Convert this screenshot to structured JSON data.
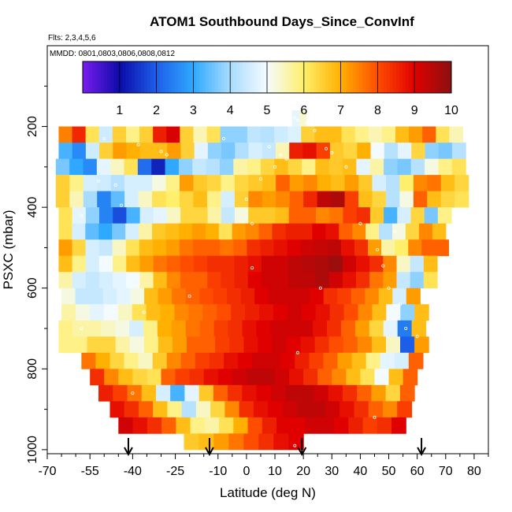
{
  "chart_data": {
    "type": "heatmap",
    "title": "ATOM1 Southbound Days_Since_ConvInf",
    "subtitle_flights": "Flts: 2,3,4,5,6",
    "subtitle_dates": "MMDD: 0801,0803,0806,0808,0812",
    "xlabel": "Latitude (deg N)",
    "ylabel": "PSXC (mbar)",
    "xlim": [
      -70,
      85
    ],
    "ylim": [
      1010,
      0
    ],
    "x_ticks": [
      -70,
      -55,
      -40,
      -25,
      -10,
      0,
      10,
      20,
      30,
      40,
      50,
      60,
      70,
      80
    ],
    "x_tick_labels": [
      "-70",
      "-55",
      "-40",
      "-25",
      "-10",
      "0",
      "10",
      "20",
      "30",
      "40",
      "50",
      "60",
      "70",
      "80"
    ],
    "y_ticks": [
      200,
      400,
      600,
      800,
      1000
    ],
    "y_tick_labels": [
      "200",
      "400",
      "600",
      "800",
      "1000"
    ],
    "colorbar": {
      "min": 0,
      "max": 10,
      "ticks": [
        1,
        2,
        3,
        4,
        5,
        6,
        7,
        8,
        9,
        10
      ],
      "tick_labels": [
        "1",
        "2",
        "3",
        "4",
        "5",
        "6",
        "7",
        "8",
        "9",
        "10"
      ]
    },
    "colors": {
      "c0": "#7a1cf0",
      "c1": "#0b0ba8",
      "c2": "#1d5ee8",
      "c3": "#2fa8ff",
      "c4": "#a8dcff",
      "c5": "#f4fbff",
      "c6": "#ffef6a",
      "c7": "#ffb000",
      "c8": "#ff4d00",
      "c9": "#e00000",
      "c10": "#8b1010"
    },
    "arrow_latitudes": [
      -41.5,
      -13,
      19.5,
      61.5
    ],
    "rows": [
      {
        "p": 180,
        "x0": 16,
        "x1": 21,
        "v": [
          4.8,
          5.3
        ]
      },
      {
        "p": 220,
        "x0": -66,
        "x1": 76,
        "v": [
          7.5,
          8.5,
          6.2,
          4.5,
          6.5,
          5.8,
          6.5,
          8.6,
          9.1,
          6.5,
          5.5,
          6.2,
          3.8,
          3.8,
          4.3,
          4.2,
          4.5,
          4.7,
          6.5,
          6.8,
          6.8,
          6.2,
          5.8,
          5.5,
          5.8,
          6.8,
          7.2,
          7.8,
          6.2,
          5.5
        ]
      },
      {
        "p": 260,
        "x0": -66,
        "x1": 77,
        "v": [
          3.2,
          2.6,
          4.5,
          6.5,
          7.2,
          7.0,
          6.8,
          6.8,
          7.2,
          6.5,
          4.8,
          3.8,
          3.6,
          4.1,
          4.6,
          4.4,
          5.5,
          8.6,
          8.8,
          8.2,
          6.6,
          6.4,
          7.0,
          5.0,
          4.2,
          4.8,
          6.4,
          3.8,
          3.6,
          4.2
        ]
      },
      {
        "p": 300,
        "x0": -67,
        "x1": 77,
        "v": [
          3.6,
          3.0,
          2.6,
          4.8,
          5.4,
          6.2,
          2.2,
          1.3,
          3.0,
          3.8,
          4.4,
          4.2,
          3.8,
          5.6,
          5.8,
          6.4,
          6.8,
          6.4,
          5.8,
          6.8,
          6.6,
          6.8,
          4.8,
          5.6,
          3.8,
          3.6,
          4.2,
          5.2,
          5.8,
          6.2
        ]
      },
      {
        "p": 340,
        "x0": -67,
        "x1": 78,
        "v": [
          6.5,
          5.8,
          4.6,
          4.5,
          4.2,
          4.6,
          4.6,
          5.2,
          5.8,
          7.2,
          6.6,
          6.4,
          5.8,
          6.4,
          6.6,
          6.8,
          7.8,
          7.2,
          7.4,
          7.0,
          6.8,
          7.2,
          6.6,
          4.6,
          4.2,
          6.0,
          7.4,
          7.6,
          6.8,
          6.4
        ]
      },
      {
        "p": 380,
        "x0": -67,
        "x1": 78,
        "v": [
          6.5,
          5.5,
          4.0,
          2.5,
          3.4,
          4.6,
          5.4,
          6.2,
          6.0,
          6.4,
          6.8,
          5.8,
          4.6,
          6.5,
          7.4,
          7.2,
          7.4,
          7.8,
          8.5,
          9.4,
          9.6,
          8.2,
          6.8,
          6.4,
          4.2,
          5.2,
          7.8,
          6.8,
          6.4,
          6.2
        ]
      },
      {
        "p": 420,
        "x0": -66,
        "x1": 72,
        "v": [
          6.2,
          4.8,
          3.8,
          2.5,
          1.8,
          3.2,
          4.6,
          4.8,
          5.4,
          6.4,
          6.4,
          5.6,
          4.4,
          5.2,
          6.6,
          6.6,
          6.8,
          7.8,
          7.8,
          7.4,
          7.6,
          8.2,
          8.4,
          6.6,
          3.2,
          4.6,
          6.4,
          3.6,
          5.8
        ]
      },
      {
        "p": 460,
        "x0": -66,
        "x1": 70,
        "v": [
          6.2,
          4.6,
          3.4,
          3.0,
          3.6,
          4.6,
          5.6,
          6.6,
          6.8,
          7.0,
          7.2,
          7.0,
          6.2,
          7.2,
          7.4,
          7.8,
          8.4,
          8.6,
          8.6,
          9.0,
          8.8,
          7.8,
          7.4,
          5.8,
          4.2,
          5.2,
          6.4,
          7.4,
          6.8
        ]
      },
      {
        "p": 500,
        "x0": -66,
        "x1": 71,
        "v": [
          7.2,
          6.4,
          4.6,
          4.4,
          5.4,
          6.2,
          6.8,
          7.0,
          7.2,
          7.6,
          7.8,
          7.8,
          7.6,
          7.8,
          8.4,
          8.6,
          8.8,
          9.0,
          9.2,
          9.3,
          9.4,
          8.8,
          8.4,
          7.2,
          5.6,
          6.0,
          7.4,
          7.8,
          7.8
        ]
      },
      {
        "p": 540,
        "x0": -66,
        "x1": 67,
        "v": [
          6.8,
          5.8,
          4.6,
          5.0,
          5.8,
          6.8,
          7.2,
          7.6,
          7.8,
          8.0,
          8.2,
          8.4,
          8.4,
          8.6,
          8.8,
          9.2,
          9.2,
          9.4,
          9.5,
          9.6,
          9.8,
          9.2,
          8.8,
          8.4,
          7.4,
          5.4,
          4.4,
          6.8
        ]
      },
      {
        "p": 580,
        "x0": -66,
        "x1": 67,
        "v": [
          5.6,
          4.6,
          4.4,
          4.6,
          4.8,
          5.0,
          5.6,
          6.8,
          7.4,
          7.8,
          7.8,
          8.2,
          8.4,
          8.6,
          9.0,
          9.2,
          9.2,
          9.4,
          9.4,
          9.6,
          9.2,
          8.8,
          8.4,
          7.6,
          7.2,
          4.4,
          3.8,
          6.2
        ]
      },
      {
        "p": 620,
        "x0": -65,
        "x1": 61,
        "v": [
          5.2,
          4.4,
          4.4,
          4.6,
          4.8,
          5.2,
          6.8,
          7.2,
          7.6,
          7.8,
          8.0,
          8.2,
          8.4,
          8.6,
          9.0,
          9.2,
          9.2,
          9.2,
          9.0,
          8.4,
          8.2,
          7.8,
          7.4,
          6.8,
          4.6,
          7.2
        ]
      },
      {
        "p": 660,
        "x0": -65,
        "x1": 64,
        "v": [
          5.6,
          5.2,
          4.8,
          5.0,
          5.4,
          6.2,
          6.8,
          7.0,
          7.4,
          7.6,
          7.8,
          8.0,
          8.4,
          8.6,
          8.8,
          9.0,
          9.2,
          9.0,
          8.8,
          8.4,
          8.0,
          7.4,
          6.8,
          5.0,
          3.8,
          6.8
        ]
      },
      {
        "p": 700,
        "x0": -66,
        "x1": 63,
        "v": [
          5.8,
          5.6,
          5.6,
          5.4,
          5.2,
          4.6,
          5.8,
          7.0,
          7.2,
          7.6,
          7.8,
          8.2,
          8.4,
          8.8,
          9.0,
          9.2,
          9.2,
          9.2,
          8.8,
          8.4,
          7.8,
          7.2,
          6.4,
          4.8,
          2.4,
          6.8
        ]
      },
      {
        "p": 740,
        "x0": -66,
        "x1": 64,
        "v": [
          5.8,
          5.8,
          6.4,
          6.4,
          5.6,
          5.2,
          5.8,
          6.8,
          7.2,
          7.8,
          7.8,
          8.2,
          8.4,
          8.8,
          9.0,
          9.2,
          9.0,
          8.8,
          8.4,
          8.0,
          7.8,
          7.4,
          6.8,
          5.4,
          2.0,
          7.2
        ]
      },
      {
        "p": 780,
        "x0": -58,
        "x1": 62,
        "v": [
          7.6,
          7.0,
          6.4,
          5.8,
          5.4,
          6.6,
          7.4,
          7.8,
          8.2,
          8.4,
          8.8,
          9.0,
          9.2,
          9.2,
          9.0,
          8.6,
          8.2,
          7.8,
          7.2,
          6.8,
          5.8,
          4.8,
          4.6,
          7.8
        ]
      },
      {
        "p": 820,
        "x0": -55,
        "x1": 60,
        "v": [
          8.4,
          7.4,
          6.8,
          6.4,
          6.2,
          7.8,
          8.2,
          8.4,
          8.8,
          9.0,
          9.2,
          9.4,
          9.4,
          9.2,
          8.8,
          8.4,
          7.8,
          7.4,
          6.8,
          6.2,
          5.0,
          6.8,
          7.8
        ]
      },
      {
        "p": 860,
        "x0": -52,
        "x1": 59,
        "v": [
          8.6,
          8.2,
          7.6,
          6.8,
          4.6,
          3.2,
          4.8,
          6.6,
          7.8,
          8.4,
          8.8,
          9.0,
          9.2,
          9.4,
          9.4,
          9.2,
          8.8,
          8.4,
          7.8,
          7.2,
          6.4,
          7.8
        ]
      },
      {
        "p": 900,
        "x0": -48,
        "x1": 58,
        "v": [
          8.8,
          8.4,
          7.8,
          6.8,
          5.8,
          4.2,
          5.4,
          6.4,
          7.4,
          8.4,
          8.8,
          9.0,
          9.2,
          9.4,
          9.4,
          9.2,
          8.8,
          8.4,
          7.8,
          7.4,
          8.2
        ]
      },
      {
        "p": 940,
        "x0": -45,
        "x1": 56,
        "v": [
          9.2,
          8.8,
          8.4,
          7.8,
          6.8,
          5.8,
          5.6,
          6.2,
          7.0,
          8.0,
          8.6,
          9.0,
          9.0,
          9.2,
          9.2,
          9.0,
          8.6,
          8.2,
          8.4,
          9.0
        ]
      },
      {
        "p": 980,
        "x0": -22,
        "x1": 20,
        "v": [
          6.6,
          6.8,
          7.2,
          7.6,
          8.0,
          8.4,
          8.8,
          9.0
        ]
      }
    ],
    "points": [
      {
        "x": -50,
        "p": 230
      },
      {
        "x": -38,
        "p": 245
      },
      {
        "x": -30,
        "p": 262
      },
      {
        "x": -28,
        "p": 270
      },
      {
        "x": -52,
        "p": 335
      },
      {
        "x": -46,
        "p": 345
      },
      {
        "x": -44,
        "p": 395
      },
      {
        "x": -58,
        "p": 420
      },
      {
        "x": -8,
        "p": 230
      },
      {
        "x": 8,
        "p": 250
      },
      {
        "x": 12,
        "p": 270
      },
      {
        "x": 14,
        "p": 280
      },
      {
        "x": 17,
        "p": 178
      },
      {
        "x": 18,
        "p": 185
      },
      {
        "x": 21,
        "p": 190
      },
      {
        "x": 24,
        "p": 210
      },
      {
        "x": 28,
        "p": 255
      },
      {
        "x": 30,
        "p": 265
      },
      {
        "x": 10,
        "p": 300
      },
      {
        "x": 5,
        "p": 330
      },
      {
        "x": 0,
        "p": 380
      },
      {
        "x": 2,
        "p": 440
      },
      {
        "x": 40,
        "p": 440
      },
      {
        "x": 52,
        "p": 460
      },
      {
        "x": 46,
        "p": 505
      },
      {
        "x": 48,
        "p": 545
      },
      {
        "x": 50,
        "p": 600
      },
      {
        "x": 54,
        "p": 640
      },
      {
        "x": 56,
        "p": 700
      },
      {
        "x": 60,
        "p": 720
      },
      {
        "x": 35,
        "p": 300
      },
      {
        "x": -20,
        "p": 620
      },
      {
        "x": -36,
        "p": 660
      },
      {
        "x": -58,
        "p": 700
      },
      {
        "x": -40,
        "p": 860
      },
      {
        "x": 45,
        "p": 920
      },
      {
        "x": 2,
        "p": 550
      },
      {
        "x": 18,
        "p": 760
      },
      {
        "x": 26,
        "p": 600
      },
      {
        "x": 17,
        "p": 990
      }
    ]
  }
}
